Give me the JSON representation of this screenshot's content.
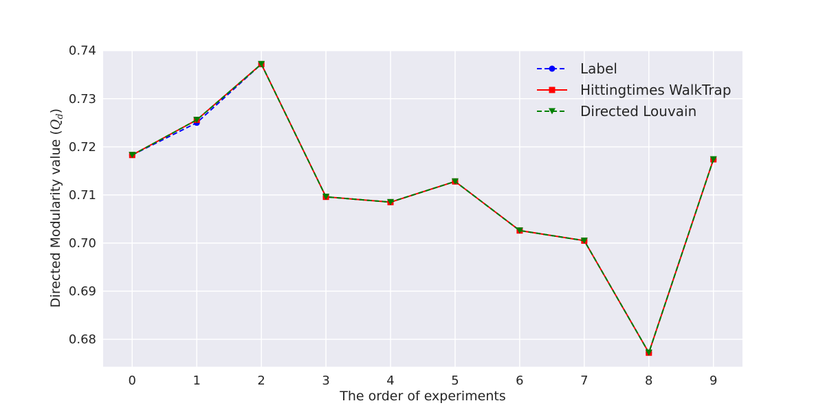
{
  "chart_data": {
    "type": "line",
    "title": "",
    "xlabel": "The order of experiments",
    "ylabel_main": "Directed Modularity value (",
    "ylabel_sym": "Q",
    "ylabel_sub": "d",
    "ylabel_close": ")",
    "x": [
      0,
      1,
      2,
      3,
      4,
      5,
      6,
      7,
      8,
      9
    ],
    "xlim": [
      -0.45,
      9.45
    ],
    "ylim": [
      0.6743,
      0.7401
    ],
    "yticks": [
      0.68,
      0.69,
      0.7,
      0.71,
      0.72,
      0.73,
      0.74
    ],
    "ytick_labels": [
      "0.68",
      "0.69",
      "0.70",
      "0.71",
      "0.72",
      "0.73",
      "0.74"
    ],
    "xtick_labels": [
      "0",
      "1",
      "2",
      "3",
      "4",
      "5",
      "6",
      "7",
      "8",
      "9"
    ],
    "grid": true,
    "legend_position": "top-right",
    "series": [
      {
        "name": "Label",
        "color": "#0000ff",
        "linestyle": "dashed",
        "marker": "circle",
        "values": [
          0.7183,
          0.725,
          0.7372,
          0.7096,
          0.7085,
          0.7128,
          0.7026,
          0.7005,
          0.6772,
          0.7174
        ]
      },
      {
        "name": "Hittingtimes WalkTrap",
        "color": "#ff0000",
        "linestyle": "solid",
        "marker": "square",
        "values": [
          0.7183,
          0.7256,
          0.7372,
          0.7096,
          0.7085,
          0.7128,
          0.7026,
          0.7005,
          0.6772,
          0.7174
        ]
      },
      {
        "name": "Directed Louvain",
        "color": "#008000",
        "linestyle": "dashed",
        "marker": "triangle-down",
        "values": [
          0.7183,
          0.7256,
          0.7372,
          0.7096,
          0.7085,
          0.7128,
          0.7026,
          0.7005,
          0.6772,
          0.7174
        ]
      }
    ]
  }
}
